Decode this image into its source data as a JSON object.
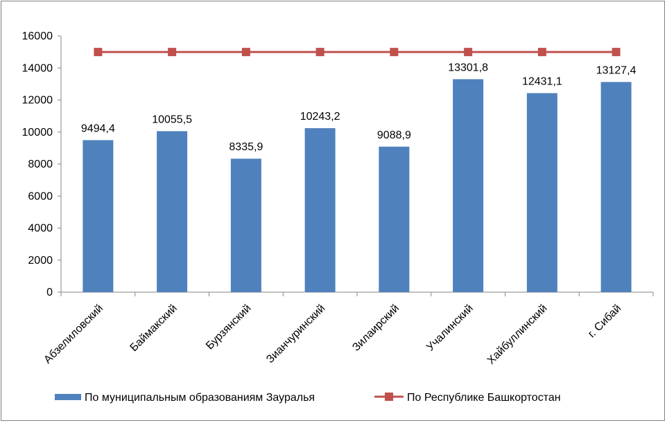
{
  "chart_data": {
    "type": "bar",
    "categories": [
      "Абзелиловский",
      "Баймакский",
      "Бурзянский",
      "Зианчуринский",
      "Зилаирский",
      "Учалинский",
      "Хайбуллинский",
      "г. Сибай"
    ],
    "series": [
      {
        "name": "По муниципальным образованиям Зауралья",
        "kind": "bar",
        "color": "#4f81bd",
        "values": [
          9494.4,
          10055.5,
          8335.9,
          10243.2,
          9088.9,
          13301.8,
          12431.1,
          13127.4
        ],
        "labels": [
          "9494,4",
          "10055,5",
          "8335,9",
          "10243,2",
          "9088,9",
          "13301,8",
          "12431,1",
          "13127,4"
        ]
      },
      {
        "name": "По Республике Башкортостан",
        "kind": "line",
        "color": "#c0504d",
        "values": [
          15000,
          15000,
          15000,
          15000,
          15000,
          15000,
          15000,
          15000
        ]
      }
    ],
    "ylim": [
      0,
      16000
    ],
    "yticks": [
      0,
      2000,
      4000,
      6000,
      8000,
      10000,
      12000,
      14000,
      16000
    ],
    "grid": false,
    "legend": "bottom",
    "title": "",
    "xlabel": "",
    "ylabel": ""
  }
}
